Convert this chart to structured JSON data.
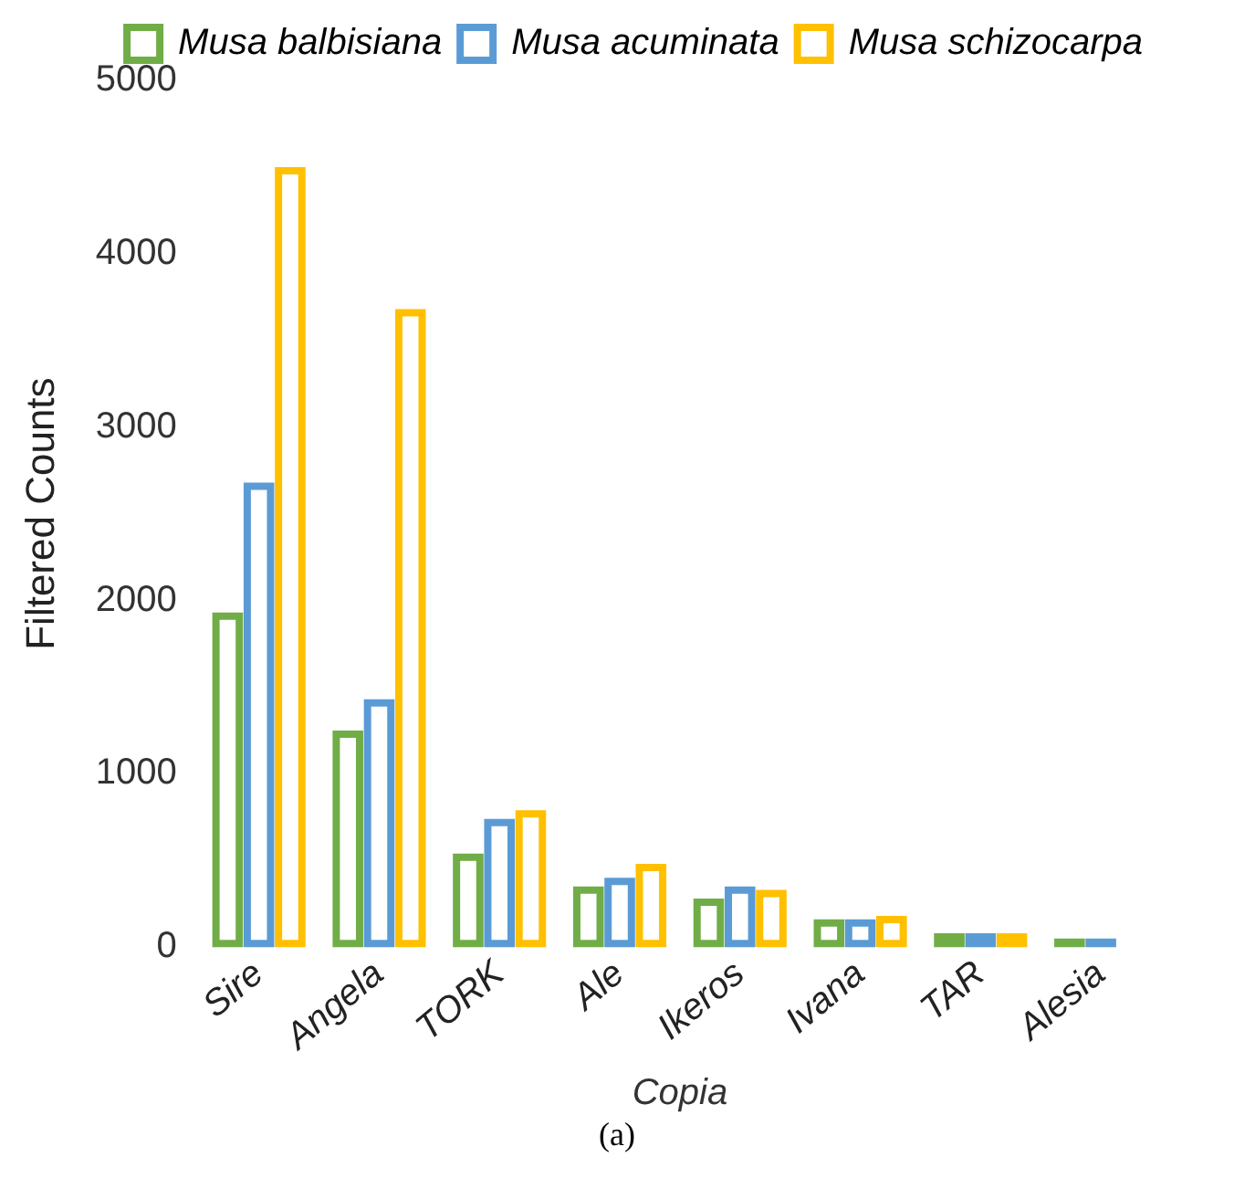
{
  "chart_data": {
    "type": "bar",
    "xlabel": "Copia",
    "ylabel": "Filtered Counts",
    "categories": [
      "Sire",
      "Angela",
      "TORK",
      "Ale",
      "Ikeros",
      "Ivana",
      "TAR",
      "Alesia"
    ],
    "series": [
      {
        "name": "Musa balbisiana",
        "color": "#70ad47",
        "values": [
          1930,
          1250,
          540,
          350,
          280,
          160,
          80,
          50
        ]
      },
      {
        "name": "Musa acuminata",
        "color": "#5b9bd5",
        "values": [
          2680,
          1430,
          740,
          400,
          350,
          160,
          80,
          50
        ]
      },
      {
        "name": "Musa schizocarpa",
        "color": "#ffc000",
        "values": [
          4500,
          3680,
          790,
          480,
          330,
          180,
          80,
          null
        ]
      }
    ],
    "ylim": [
      0,
      5000
    ],
    "yticks": [
      0,
      1000,
      2000,
      3000,
      4000,
      5000
    ],
    "grid": false,
    "legend": "top right",
    "annotations": [
      "(a)"
    ]
  }
}
